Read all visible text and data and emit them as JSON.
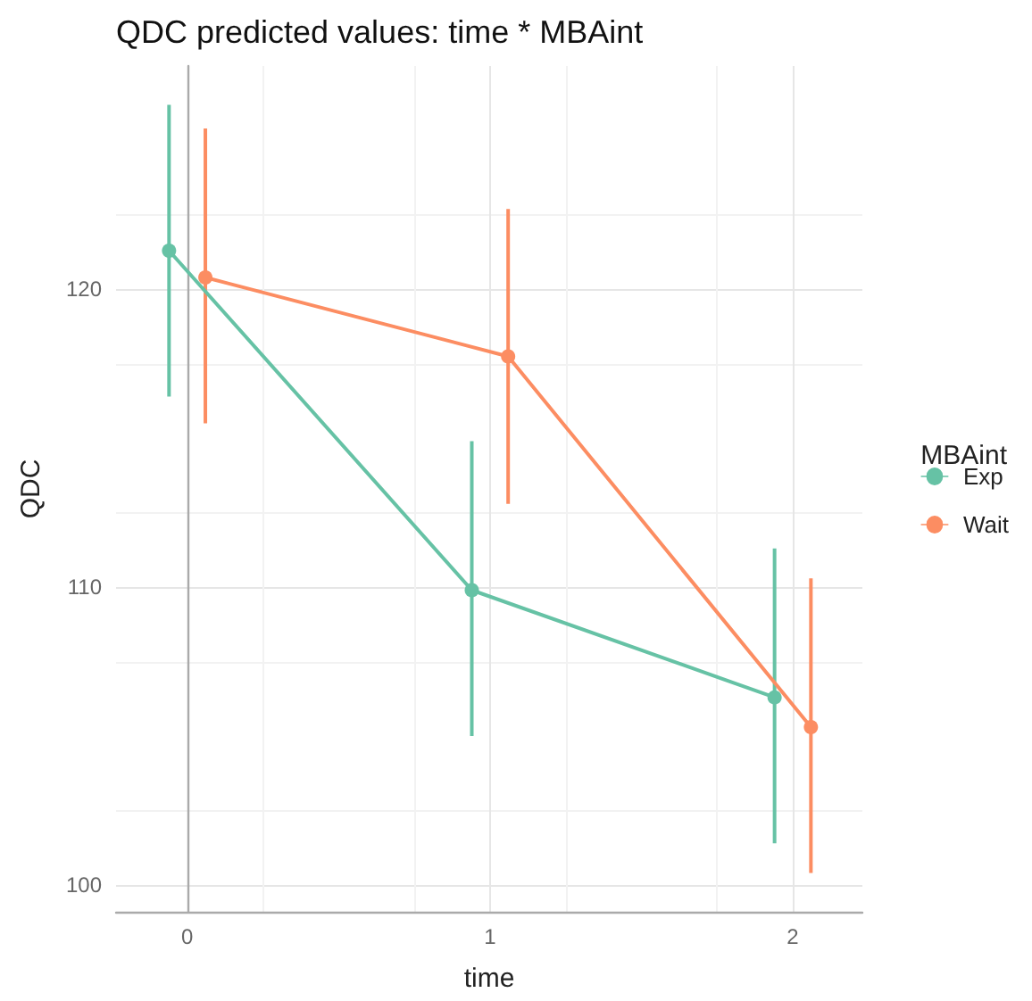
{
  "chart_data": {
    "type": "line",
    "title": "QDC predicted values: time * MBAint",
    "xlabel": "time",
    "ylabel": "QDC",
    "legend_title": "MBAint",
    "legend": "right",
    "grid": true,
    "marker": "circle",
    "line_style": "solid",
    "xlim": [
      -0.235,
      2.23
    ],
    "xticks": [
      0,
      1,
      2
    ],
    "ylim": [
      99.1,
      127.5
    ],
    "yticks": [
      100,
      110,
      120
    ],
    "series": [
      {
        "name": "Exp",
        "color": "#66c2a5",
        "x": [
          -0.06,
          0.94,
          1.94
        ],
        "values": [
          121.3,
          109.9,
          106.3
        ],
        "errors": [
          [
            116.4,
            126.2
          ],
          [
            105.0,
            114.9
          ],
          [
            101.4,
            111.3
          ]
        ]
      },
      {
        "name": "Wait",
        "color": "#fc8d62",
        "x": [
          0.06,
          1.06,
          2.06
        ],
        "values": [
          120.4,
          117.75,
          105.3
        ],
        "errors": [
          [
            115.5,
            125.4
          ],
          [
            112.8,
            122.7
          ],
          [
            100.4,
            110.3
          ]
        ]
      }
    ]
  }
}
